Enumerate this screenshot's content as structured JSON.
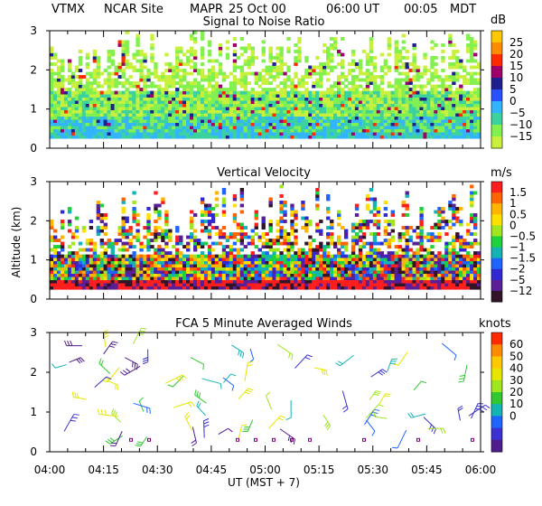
{
  "header": {
    "station": "VTMX",
    "site": "NCAR Site",
    "instrument": "MAPR",
    "date": "25 Oct 00",
    "time_ut": "06:00 UT",
    "time_local": "00:05",
    "tz": "MDT"
  },
  "chart_data": [
    {
      "type": "heatmap",
      "title": "Signal to Noise Ratio",
      "ylim": [
        0,
        3
      ],
      "yticks": [
        "0",
        "1",
        "2",
        "3"
      ],
      "unit": "dB",
      "colorbar": {
        "labels": [
          "25",
          "20",
          "15",
          "10",
          "5",
          "0",
          "−5",
          "−10",
          "−15"
        ],
        "colors": [
          "#ffc800",
          "#ff8c00",
          "#ff2a00",
          "#a0006a",
          "#1f1f8f",
          "#2850ff",
          "#32b4ff",
          "#3cd2a0",
          "#82f04e",
          "#c8f03c"
        ]
      }
    },
    {
      "type": "heatmap",
      "title": "Vertical Velocity",
      "ylabel": "Altitude (km)",
      "ylim": [
        0,
        3
      ],
      "yticks": [
        "0",
        "1",
        "2",
        "3"
      ],
      "unit": "m/s",
      "colorbar": {
        "labels": [
          "1.5",
          "1",
          "0.5",
          "0",
          "−0.5",
          "−1",
          "−1.5",
          "−2",
          "−5",
          "−12"
        ],
        "colors": [
          "#ff1e1e",
          "#ff6400",
          "#ffb400",
          "#ffe100",
          "#a0e61e",
          "#1ed23c",
          "#14b4b4",
          "#1e64ff",
          "#3228d2",
          "#5a1e96",
          "#321428"
        ]
      }
    },
    {
      "type": "scatter",
      "title": "FCA 5 Minute Averaged Winds",
      "xlabel": "UT  (MST + 7)",
      "ylim": [
        0,
        3
      ],
      "yticks": [
        "0",
        "1",
        "2",
        "3"
      ],
      "xticks": [
        "04:00",
        "04:15",
        "04:30",
        "04:45",
        "05:00",
        "05:15",
        "05:30",
        "05:45",
        "06:00"
      ],
      "unit": "knots",
      "colorbar": {
        "labels": [
          "60",
          "50",
          "40",
          "30",
          "20",
          "10",
          "0"
        ],
        "colors": [
          "#ff2a00",
          "#ff8c00",
          "#ffc800",
          "#e6e600",
          "#a0e61e",
          "#32c832",
          "#14b4b4",
          "#1e64ff",
          "#3c32d2",
          "#501e8c"
        ]
      }
    }
  ]
}
